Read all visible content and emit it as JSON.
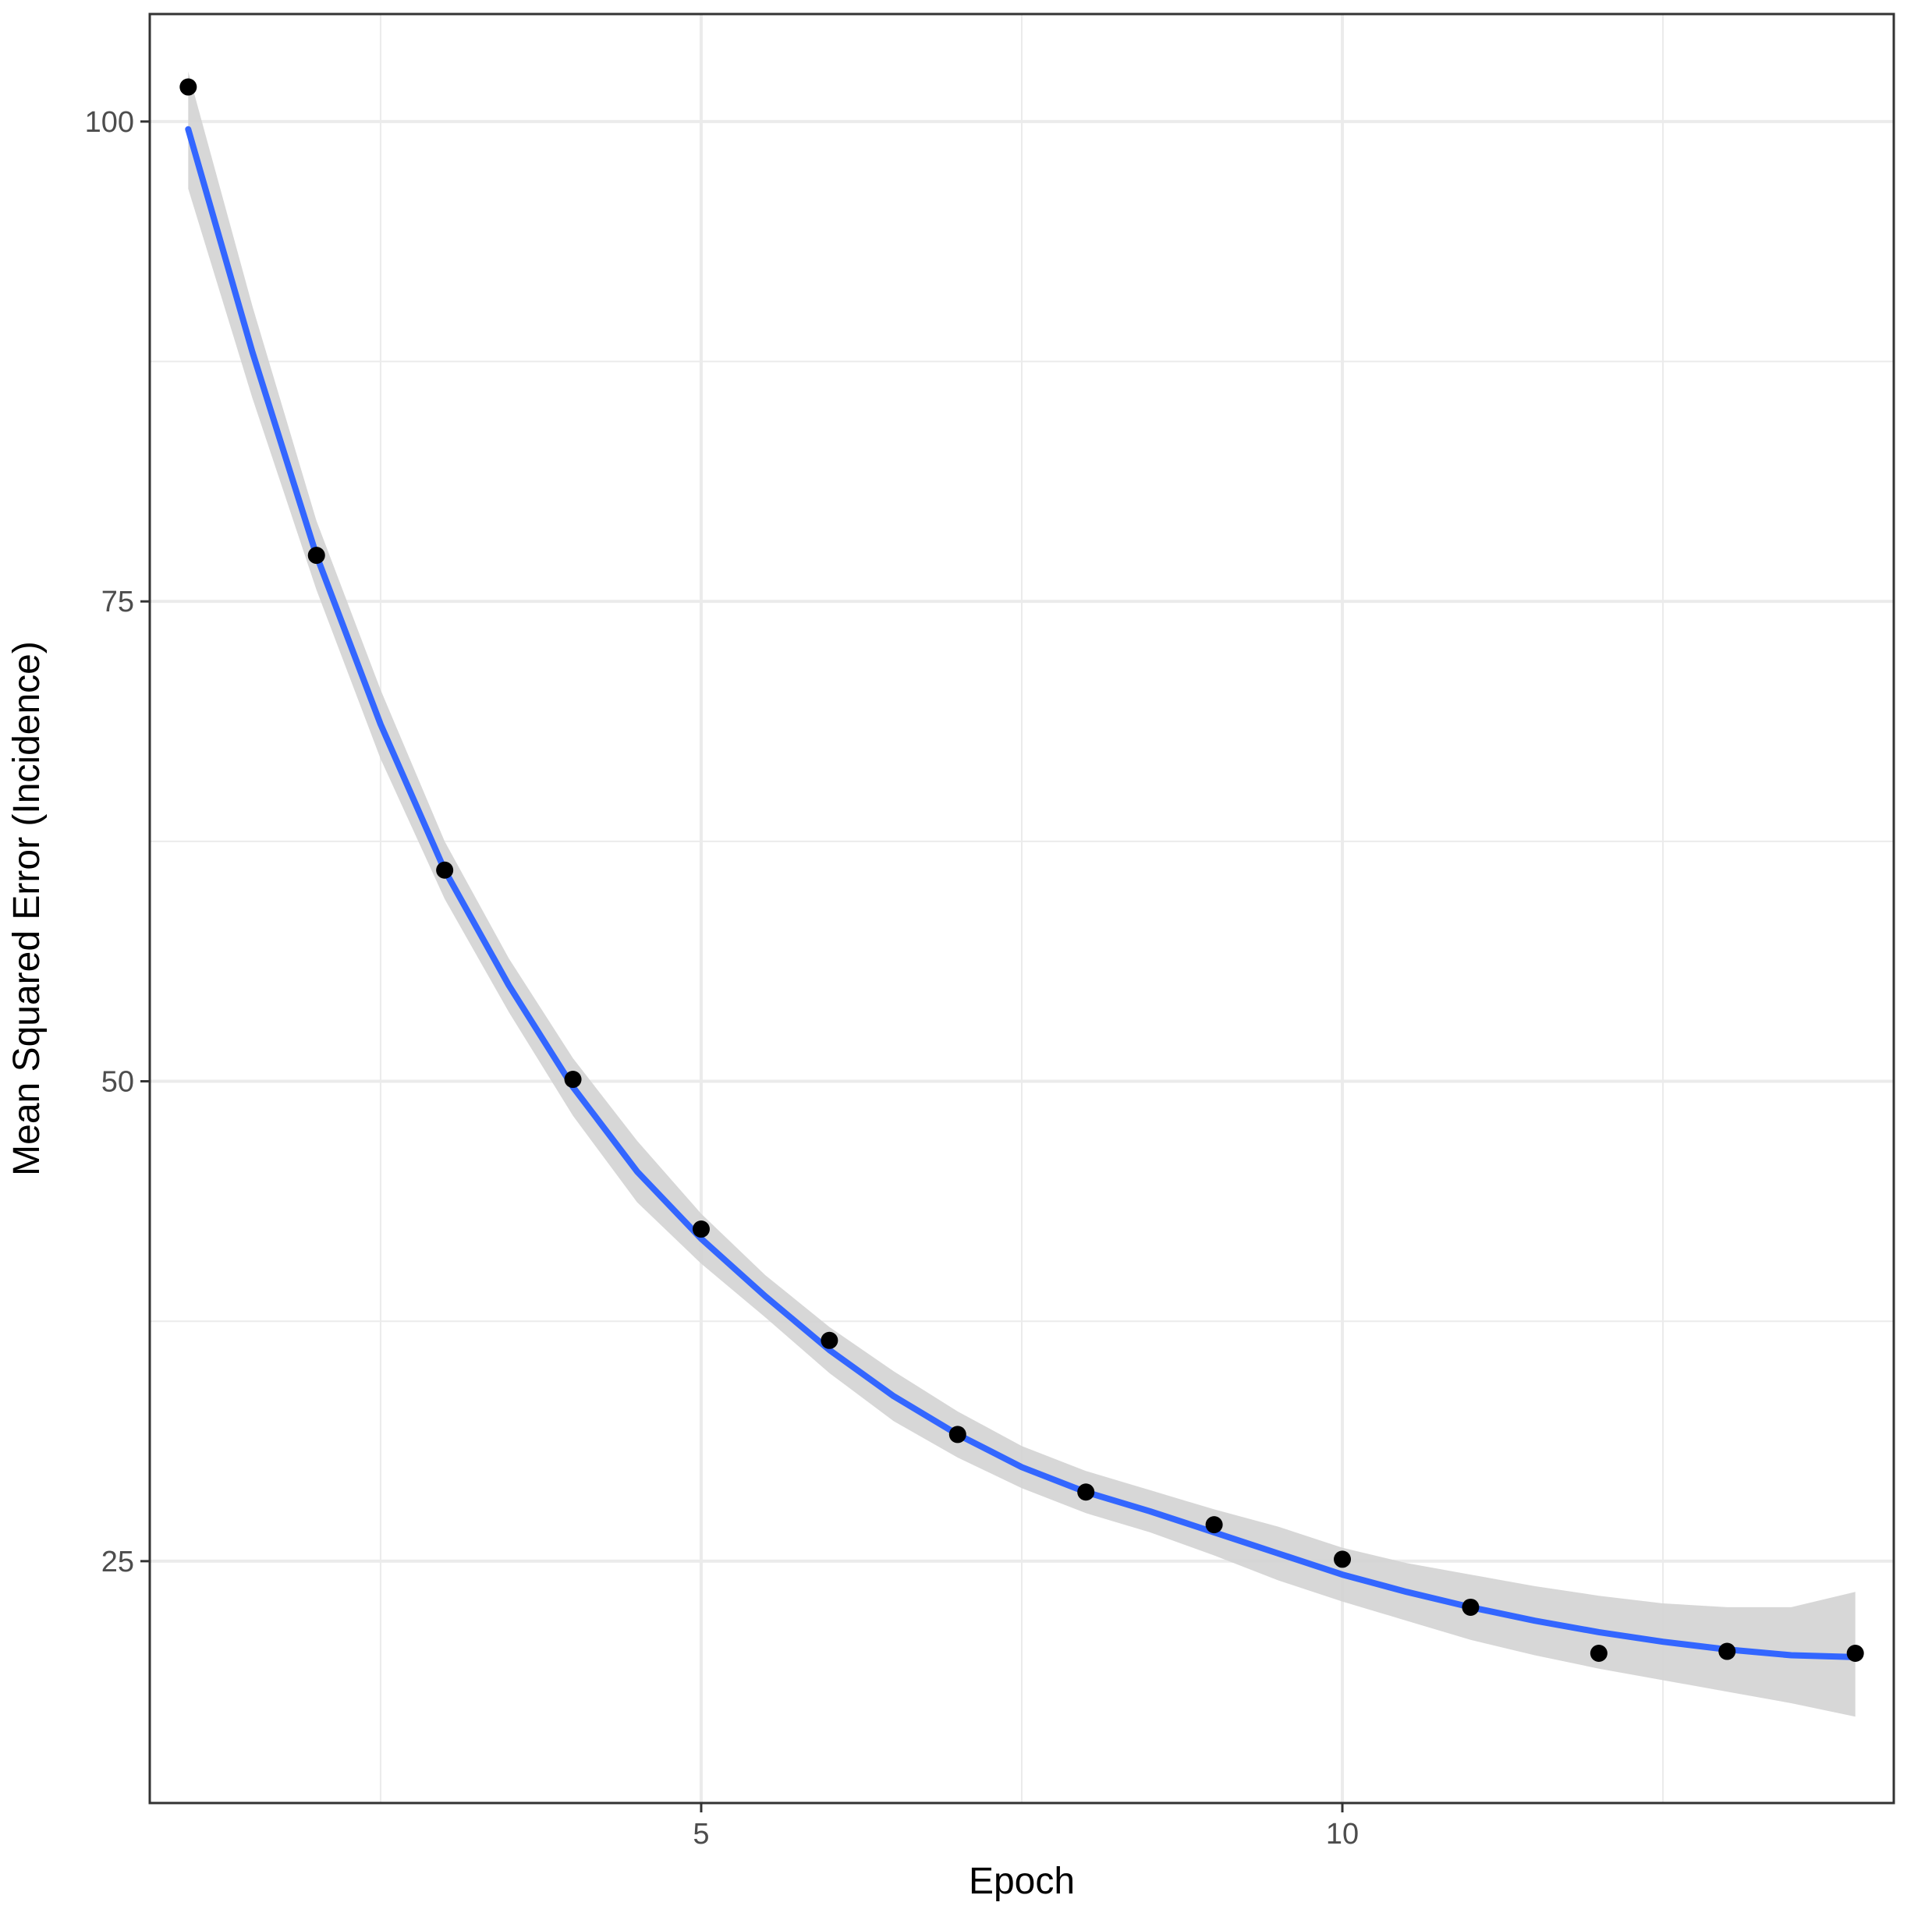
{
  "chart_data": {
    "type": "scatter",
    "title": "",
    "xlabel": "Epoch",
    "ylabel": "Mean Squared Error (Incidence)",
    "xlim": [
      0.7,
      14.3
    ],
    "ylim": [
      12.4,
      105.6
    ],
    "x_ticks": [
      5,
      10
    ],
    "x_tick_labels": [
      "5",
      "10"
    ],
    "x_minor_ticks": [
      2.5,
      7.5,
      12.5
    ],
    "y_ticks": [
      25,
      50,
      75,
      100
    ],
    "y_tick_labels": [
      "25",
      "50",
      "75",
      "100"
    ],
    "y_minor_ticks": [
      37.5,
      62.5,
      87.5
    ],
    "grid": true,
    "points": {
      "x": [
        1,
        2,
        3,
        4,
        5,
        6,
        7,
        8,
        9,
        10,
        11,
        12,
        13,
        14
      ],
      "y": [
        101.8,
        77.4,
        61.0,
        50.1,
        42.3,
        36.5,
        31.6,
        28.6,
        26.9,
        25.1,
        22.6,
        20.2,
        20.3,
        20.2
      ]
    },
    "smooth_fit": {
      "x": [
        1,
        1.5,
        2,
        2.5,
        3,
        3.5,
        4,
        4.5,
        5,
        5.5,
        6,
        6.5,
        7,
        7.5,
        8,
        8.5,
        9,
        9.5,
        10,
        10.5,
        11,
        11.5,
        12,
        12.5,
        13,
        13.5,
        14
      ],
      "y": [
        99.6,
        88.0,
        77.4,
        68.6,
        61.0,
        55.0,
        49.7,
        45.3,
        41.8,
        38.8,
        36.0,
        33.6,
        31.6,
        29.9,
        28.6,
        27.6,
        26.5,
        25.4,
        24.3,
        23.4,
        22.6,
        21.9,
        21.3,
        20.8,
        20.4,
        20.1,
        20.0
      ],
      "lower": [
        96.5,
        85.6,
        75.6,
        66.8,
        59.5,
        53.6,
        48.2,
        43.7,
        40.5,
        37.7,
        34.8,
        32.3,
        30.4,
        28.8,
        27.5,
        26.5,
        25.3,
        24.0,
        22.9,
        21.9,
        20.9,
        20.1,
        19.4,
        18.8,
        18.2,
        17.6,
        16.9
      ],
      "upper": [
        102.6,
        90.4,
        79.2,
        70.4,
        62.5,
        56.4,
        51.2,
        46.9,
        43.1,
        39.9,
        37.2,
        34.9,
        32.8,
        31.0,
        29.7,
        28.7,
        27.7,
        26.8,
        25.7,
        24.9,
        24.3,
        23.7,
        23.2,
        22.8,
        22.6,
        22.6,
        23.4
      ]
    },
    "colors": {
      "point": "#000000",
      "line": "#3366FF",
      "ribbon": "#D3D3D3",
      "grid": "#EBEBEB",
      "border": "#333333"
    }
  }
}
